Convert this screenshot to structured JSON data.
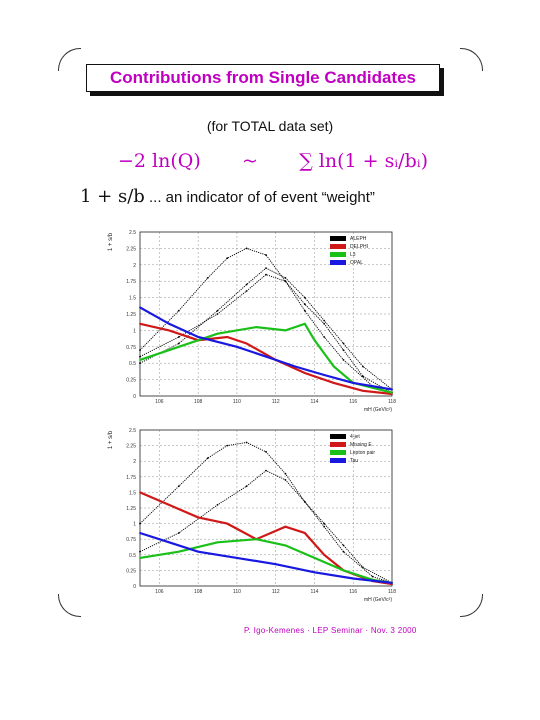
{
  "slide": {
    "title": "Contributions from Single Candidates",
    "subtitle": "(for TOTAL data set)",
    "formula_left": "−2 ln(Q)",
    "formula_sim": "~",
    "formula_right": "∑ ln(1 + sᵢ/bᵢ)",
    "indicator_math": "1 + s/b",
    "indicator_text": " ... an indicator of of event “weight”",
    "footer": "P. Igo-Kemenes · LEP Seminar · Nov. 3 2000",
    "accent_color": "#c000c0"
  },
  "chart_data": [
    {
      "type": "line",
      "title": "",
      "xlabel": "mH (GeV/c²)",
      "ylabel": "1 + s/b",
      "ylim": [
        0,
        2.5
      ],
      "xlim": [
        105,
        118
      ],
      "xticks": [
        "106",
        "108",
        "110",
        "112",
        "114",
        "116",
        "118"
      ],
      "yticks": [
        "0",
        "0.25",
        "0.5",
        "0.75",
        "1",
        "1.25",
        "1.5",
        "1.75",
        "2",
        "2.25",
        "2.5"
      ],
      "grid": true,
      "legend_position": "top-right",
      "series": [
        {
          "name": "ALEPH",
          "color": "#000000",
          "points": [
            [
              105.0,
              0.6
            ],
            [
              107.0,
              0.9
            ],
            [
              109.0,
              1.25
            ],
            [
              110.5,
              1.6
            ],
            [
              111.5,
              1.85
            ],
            [
              112.5,
              1.75
            ],
            [
              113.5,
              1.4
            ],
            [
              114.5,
              1.1
            ],
            [
              115.5,
              0.7
            ],
            [
              116.5,
              0.3
            ],
            [
              118.0,
              0.05
            ]
          ]
        },
        {
          "name": "ALEPH",
          "color": "#000000",
          "points": [
            [
              105.0,
              0.7
            ],
            [
              107.0,
              1.3
            ],
            [
              108.5,
              1.8
            ],
            [
              109.5,
              2.1
            ],
            [
              110.5,
              2.25
            ],
            [
              111.5,
              2.15
            ],
            [
              112.5,
              1.75
            ],
            [
              113.5,
              1.3
            ],
            [
              114.5,
              0.9
            ],
            [
              115.5,
              0.55
            ],
            [
              117.0,
              0.15
            ],
            [
              118.0,
              0.05
            ]
          ]
        },
        {
          "name": "ALEPH",
          "color": "#000000",
          "points": [
            [
              105.0,
              0.5
            ],
            [
              107.0,
              0.8
            ],
            [
              109.0,
              1.3
            ],
            [
              110.5,
              1.7
            ],
            [
              111.5,
              1.95
            ],
            [
              112.5,
              1.8
            ],
            [
              113.5,
              1.5
            ],
            [
              114.5,
              1.15
            ],
            [
              115.5,
              0.8
            ],
            [
              116.5,
              0.45
            ],
            [
              118.0,
              0.1
            ]
          ]
        },
        {
          "name": "DELPHI",
          "color": "#d01818",
          "points": [
            [
              105.0,
              1.1
            ],
            [
              106.5,
              1.0
            ],
            [
              108.0,
              0.85
            ],
            [
              109.5,
              0.9
            ],
            [
              110.5,
              0.8
            ],
            [
              112.0,
              0.55
            ],
            [
              113.5,
              0.35
            ],
            [
              115.0,
              0.2
            ],
            [
              116.5,
              0.08
            ],
            [
              118.0,
              0.03
            ]
          ]
        },
        {
          "name": "L3",
          "color": "#18c018",
          "points": [
            [
              105.0,
              0.55
            ],
            [
              107.0,
              0.75
            ],
            [
              109.0,
              0.95
            ],
            [
              111.0,
              1.05
            ],
            [
              112.5,
              1.0
            ],
            [
              113.5,
              1.1
            ],
            [
              114.0,
              0.85
            ],
            [
              115.0,
              0.45
            ],
            [
              116.0,
              0.2
            ],
            [
              118.0,
              0.05
            ]
          ]
        },
        {
          "name": "OPAL",
          "color": "#1818e0",
          "points": [
            [
              105.0,
              1.35
            ],
            [
              106.5,
              1.1
            ],
            [
              108.0,
              0.9
            ],
            [
              110.0,
              0.75
            ],
            [
              111.5,
              0.6
            ],
            [
              113.0,
              0.45
            ],
            [
              114.5,
              0.32
            ],
            [
              116.0,
              0.2
            ],
            [
              118.0,
              0.1
            ]
          ]
        }
      ]
    },
    {
      "type": "line",
      "title": "",
      "xlabel": "mH (GeV/c²)",
      "ylabel": "1 + s/b",
      "ylim": [
        0,
        2.5
      ],
      "xlim": [
        105,
        118
      ],
      "xticks": [
        "106",
        "108",
        "110",
        "112",
        "114",
        "116",
        "118"
      ],
      "yticks": [
        "0",
        "0.25",
        "0.5",
        "0.75",
        "1",
        "1.25",
        "1.5",
        "1.75",
        "2",
        "2.25",
        "2.5"
      ],
      "grid": true,
      "legend_position": "top-right",
      "series": [
        {
          "name": "4-jet",
          "color": "#000000",
          "points": [
            [
              105.0,
              1.0
            ],
            [
              107.0,
              1.6
            ],
            [
              108.5,
              2.05
            ],
            [
              109.5,
              2.25
            ],
            [
              110.5,
              2.3
            ],
            [
              111.5,
              2.15
            ],
            [
              112.5,
              1.8
            ],
            [
              113.5,
              1.35
            ],
            [
              114.5,
              0.95
            ],
            [
              115.5,
              0.55
            ],
            [
              117.0,
              0.15
            ],
            [
              118.0,
              0.05
            ]
          ]
        },
        {
          "name": "4-jet",
          "color": "#000000",
          "points": [
            [
              105.0,
              0.55
            ],
            [
              107.0,
              0.85
            ],
            [
              109.0,
              1.3
            ],
            [
              110.5,
              1.6
            ],
            [
              111.5,
              1.85
            ],
            [
              112.5,
              1.7
            ],
            [
              113.5,
              1.35
            ],
            [
              114.5,
              1.0
            ],
            [
              115.5,
              0.65
            ],
            [
              116.5,
              0.3
            ],
            [
              118.0,
              0.05
            ]
          ]
        },
        {
          "name": "Missing E",
          "color": "#d01818",
          "points": [
            [
              105.0,
              1.5
            ],
            [
              106.5,
              1.3
            ],
            [
              108.0,
              1.1
            ],
            [
              109.5,
              1.0
            ],
            [
              111.0,
              0.75
            ],
            [
              112.5,
              0.95
            ],
            [
              113.5,
              0.85
            ],
            [
              114.5,
              0.5
            ],
            [
              115.5,
              0.25
            ],
            [
              117.0,
              0.08
            ],
            [
              118.0,
              0.03
            ]
          ]
        },
        {
          "name": "Lepton pair",
          "color": "#18c018",
          "points": [
            [
              105.0,
              0.45
            ],
            [
              107.0,
              0.55
            ],
            [
              109.0,
              0.7
            ],
            [
              111.0,
              0.75
            ],
            [
              112.5,
              0.65
            ],
            [
              114.0,
              0.45
            ],
            [
              115.5,
              0.25
            ],
            [
              117.0,
              0.1
            ],
            [
              118.0,
              0.05
            ]
          ]
        },
        {
          "name": "Tau",
          "color": "#1818e0",
          "points": [
            [
              105.0,
              0.85
            ],
            [
              106.5,
              0.7
            ],
            [
              108.0,
              0.55
            ],
            [
              110.0,
              0.45
            ],
            [
              112.0,
              0.35
            ],
            [
              114.0,
              0.22
            ],
            [
              116.0,
              0.12
            ],
            [
              118.0,
              0.05
            ]
          ]
        }
      ]
    }
  ]
}
